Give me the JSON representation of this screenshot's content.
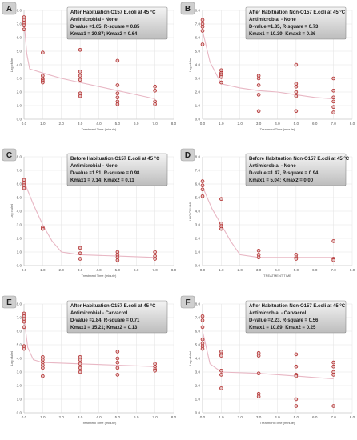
{
  "chart_data": [
    {
      "type": "scatter",
      "panel_label": "A",
      "annotation": [
        "After Habituation O157 E.coli at 45 °C",
        "Antimicrobial - None",
        "D-value =1.65, R-square = 0.85",
        "Kmax1 = 30.87; Kmax2 = 0.64"
      ],
      "ylabel": "Log cfu/ml",
      "xlabel": "Treatment Time (minute)",
      "xlim": [
        0,
        8
      ],
      "ylim": [
        0,
        8
      ],
      "xticks": [
        "0.0",
        "1.0",
        "2.0",
        "3.0",
        "4.0",
        "5.0",
        "6.0",
        "7.0",
        "8.0"
      ],
      "yticks": [
        "0.0",
        "1.0",
        "2.0",
        "3.0",
        "4.0",
        "5.0",
        "6.0",
        "7.0",
        "8.0"
      ],
      "points": [
        [
          0,
          7.5
        ],
        [
          0,
          7.3
        ],
        [
          0,
          7.1
        ],
        [
          0,
          6.9
        ],
        [
          0,
          6.6
        ],
        [
          1,
          4.9
        ],
        [
          1,
          3.2
        ],
        [
          1,
          3.0
        ],
        [
          1,
          2.9
        ],
        [
          1,
          2.8
        ],
        [
          1,
          2.7
        ],
        [
          3,
          5.1
        ],
        [
          3,
          3.5
        ],
        [
          3,
          3.2
        ],
        [
          3,
          2.9
        ],
        [
          3,
          1.9
        ],
        [
          3,
          1.7
        ],
        [
          5,
          4.3
        ],
        [
          5,
          2.5
        ],
        [
          5,
          1.9
        ],
        [
          5,
          1.6
        ],
        [
          5,
          1.3
        ],
        [
          5,
          1.1
        ],
        [
          7,
          2.4
        ],
        [
          7,
          2.1
        ],
        [
          7,
          1.3
        ],
        [
          7,
          1.1
        ]
      ],
      "fit": [
        [
          0,
          7.2
        ],
        [
          0.15,
          4.8
        ],
        [
          0.3,
          3.7
        ],
        [
          1,
          3.4
        ],
        [
          2,
          3.0
        ],
        [
          3,
          2.7
        ],
        [
          4,
          2.4
        ],
        [
          5,
          2.1
        ],
        [
          6,
          1.8
        ],
        [
          7,
          1.5
        ]
      ]
    },
    {
      "type": "scatter",
      "panel_label": "B",
      "annotation": [
        "After Habituation Non-O157 E.coli at 45 °C",
        "Antimicrobial - None",
        "D-value =1.85, R-square = 0.73",
        "Kmax1 = 10.39; Kmax2 = 0.26"
      ],
      "ylabel": "Log cfu/ml",
      "xlabel": "Treatment Time (minute)",
      "xlim": [
        0,
        8
      ],
      "ylim": [
        0,
        8
      ],
      "xticks": [
        "0.0",
        "1.0",
        "2.0",
        "3.0",
        "4.0",
        "5.0",
        "6.0",
        "7.0",
        "8.0"
      ],
      "yticks": [
        "0.0",
        "1.0",
        "2.0",
        "3.0",
        "4.0",
        "5.0",
        "6.0",
        "7.0",
        "8.0"
      ],
      "points": [
        [
          0,
          7.3
        ],
        [
          0,
          7.0
        ],
        [
          0,
          6.8
        ],
        [
          0,
          6.5
        ],
        [
          0,
          5.5
        ],
        [
          1,
          3.6
        ],
        [
          1,
          3.4
        ],
        [
          1,
          3.3
        ],
        [
          1,
          3.2
        ],
        [
          1,
          3.1
        ],
        [
          1,
          2.7
        ],
        [
          3,
          3.2
        ],
        [
          3,
          3.0
        ],
        [
          3,
          2.5
        ],
        [
          3,
          1.8
        ],
        [
          3,
          0.6
        ],
        [
          5,
          4.0
        ],
        [
          5,
          2.6
        ],
        [
          5,
          2.4
        ],
        [
          5,
          2.0
        ],
        [
          5,
          1.7
        ],
        [
          5,
          0.6
        ],
        [
          7,
          3.0
        ],
        [
          7,
          2.1
        ],
        [
          7,
          1.6
        ],
        [
          7,
          1.3
        ],
        [
          7,
          0.9
        ],
        [
          7,
          0.5
        ]
      ],
      "fit": [
        [
          0,
          6.5
        ],
        [
          0.4,
          4.2
        ],
        [
          1,
          2.6
        ],
        [
          2,
          2.3
        ],
        [
          3,
          2.1
        ],
        [
          4,
          2.0
        ],
        [
          5,
          1.8
        ],
        [
          6,
          1.6
        ],
        [
          7,
          1.5
        ]
      ]
    },
    {
      "type": "scatter",
      "panel_label": "C",
      "annotation": [
        "Before Habituation O157 E.coli at 45 °C",
        "Antimicrobial - None",
        "D-value =1.51, R-square = 0.98",
        "Kmax1 = 7.14; Kmax2 = 0.11"
      ],
      "ylabel": "Log cfu/ml",
      "xlabel": "Treatment Time (minute)",
      "xlim": [
        0,
        8
      ],
      "ylim": [
        0,
        8
      ],
      "xticks": [
        "0.0",
        "1.0",
        "2.0",
        "3.0",
        "4.0",
        "5.0",
        "6.0",
        "7.0",
        "8.0"
      ],
      "yticks": [
        "0.0",
        "1.0",
        "2.0",
        "3.0",
        "4.0",
        "5.0",
        "6.0",
        "7.0",
        "8.0"
      ],
      "points": [
        [
          0,
          6.3
        ],
        [
          0,
          6.1
        ],
        [
          0,
          5.9
        ],
        [
          0,
          5.7
        ],
        [
          1,
          2.8
        ],
        [
          1,
          2.7
        ],
        [
          3,
          1.3
        ],
        [
          3,
          0.9
        ],
        [
          3,
          0.5
        ],
        [
          5,
          1.0
        ],
        [
          5,
          0.8
        ],
        [
          5,
          0.6
        ],
        [
          5,
          0.4
        ],
        [
          7,
          1.0
        ],
        [
          7,
          0.7
        ],
        [
          7,
          0.5
        ]
      ],
      "fit": [
        [
          0,
          6.2
        ],
        [
          0.5,
          4.5
        ],
        [
          1,
          3.0
        ],
        [
          1.5,
          1.8
        ],
        [
          2,
          1.0
        ],
        [
          3,
          0.8
        ],
        [
          5,
          0.7
        ],
        [
          7,
          0.6
        ]
      ]
    },
    {
      "type": "scatter",
      "panel_label": "D",
      "annotation": [
        "Before Habituation Non-O157 E.coli at 45 °C",
        "Antimicrobial - None",
        "D-value =1.47, R-square = 0.94",
        "Kmax1 = 5.04; Kmax2 = 0.00"
      ],
      "ylabel": "LOG CFU/ML",
      "xlabel": "TREATMENT TIME",
      "xlim": [
        0,
        8
      ],
      "ylim": [
        0,
        8
      ],
      "xticks": [
        "0.0",
        "1.0",
        "2.0",
        "3.0",
        "4.0",
        "5.0",
        "6.0",
        "7.0",
        "8.0"
      ],
      "yticks": [
        "0.0",
        "1.0",
        "2.0",
        "3.0",
        "4.0",
        "5.0",
        "6.0",
        "7.0",
        "8.0"
      ],
      "points": [
        [
          0,
          6.2
        ],
        [
          0,
          5.9
        ],
        [
          0,
          5.6
        ],
        [
          0,
          5.1
        ],
        [
          1,
          4.9
        ],
        [
          1,
          3.1
        ],
        [
          1,
          2.9
        ],
        [
          1,
          2.7
        ],
        [
          3,
          1.1
        ],
        [
          3,
          0.8
        ],
        [
          3,
          0.6
        ],
        [
          5,
          0.8
        ],
        [
          5,
          0.6
        ],
        [
          5,
          0.5
        ],
        [
          7,
          1.8
        ],
        [
          7,
          0.5
        ],
        [
          7,
          0.4
        ]
      ],
      "fit": [
        [
          0,
          5.8
        ],
        [
          0.5,
          4.2
        ],
        [
          1,
          3.0
        ],
        [
          1.5,
          1.8
        ],
        [
          2,
          0.8
        ],
        [
          3,
          0.6
        ],
        [
          5,
          0.6
        ],
        [
          7,
          0.6
        ]
      ]
    },
    {
      "type": "scatter",
      "panel_label": "E",
      "annotation": [
        "After Habituation O157 E.coli at 45 °C",
        "Antimicrobial - Carvacrol",
        "D-value =2.84, R-square = 0.71",
        "Kmax1 = 15.21; Kmax2 = 0.13"
      ],
      "ylabel": "Log cfu/ml",
      "xlabel": "Treatment Time (minute)",
      "xlim": [
        0,
        8
      ],
      "ylim": [
        0,
        8
      ],
      "xticks": [
        "0.0",
        "1.0",
        "2.0",
        "3.0",
        "4.0",
        "5.0",
        "6.0",
        "7.0",
        "8.0"
      ],
      "yticks": [
        "0.0",
        "1.0",
        "2.0",
        "3.0",
        "4.0",
        "5.0",
        "6.0",
        "7.0",
        "8.0"
      ],
      "points": [
        [
          0,
          7.3
        ],
        [
          0,
          7.1
        ],
        [
          0,
          6.9
        ],
        [
          0,
          6.7
        ],
        [
          0,
          6.3
        ],
        [
          0,
          4.9
        ],
        [
          0,
          4.7
        ],
        [
          1,
          4.1
        ],
        [
          1,
          3.9
        ],
        [
          1,
          3.7
        ],
        [
          1,
          3.5
        ],
        [
          1,
          3.3
        ],
        [
          1,
          2.7
        ],
        [
          3,
          4.1
        ],
        [
          3,
          3.9
        ],
        [
          3,
          3.6
        ],
        [
          3,
          3.3
        ],
        [
          3,
          3.0
        ],
        [
          5,
          4.5
        ],
        [
          5,
          4.0
        ],
        [
          5,
          3.7
        ],
        [
          5,
          3.3
        ],
        [
          5,
          2.8
        ],
        [
          7,
          3.6
        ],
        [
          7,
          3.4
        ],
        [
          7,
          3.2
        ],
        [
          7,
          3.1
        ]
      ],
      "fit": [
        [
          0,
          7.0
        ],
        [
          0.2,
          4.8
        ],
        [
          0.5,
          3.9
        ],
        [
          1,
          3.7
        ],
        [
          3,
          3.6
        ],
        [
          5,
          3.5
        ],
        [
          7,
          3.4
        ]
      ]
    },
    {
      "type": "scatter",
      "panel_label": "F",
      "annotation": [
        "After Habituation Non-O157 E.coli at 45 °C",
        "Antimicrobial - Carvacrol",
        "D-value =2.23, R-square = 0.56",
        "Kmax1 = 10.89; Kmax2 = 0.25"
      ],
      "ylabel": "Log cfu/ml",
      "xlabel": "Treatment Time (minute)",
      "xlim": [
        0,
        8
      ],
      "ylim": [
        0,
        8
      ],
      "xticks": [
        "0.0",
        "1.0",
        "2.0",
        "3.0",
        "4.0",
        "5.0",
        "6.0",
        "7.0",
        "8.0"
      ],
      "yticks": [
        "0.0",
        "1.0",
        "2.0",
        "3.0",
        "4.0",
        "5.0",
        "6.0",
        "7.0",
        "8.0"
      ],
      "points": [
        [
          0,
          7.1
        ],
        [
          0,
          6.8
        ],
        [
          0,
          6.3
        ],
        [
          0,
          5.4
        ],
        [
          0,
          5.1
        ],
        [
          0,
          4.9
        ],
        [
          0,
          4.7
        ],
        [
          1,
          4.5
        ],
        [
          1,
          4.3
        ],
        [
          1,
          4.2
        ],
        [
          1,
          3.1
        ],
        [
          1,
          2.8
        ],
        [
          1,
          1.8
        ],
        [
          3,
          4.4
        ],
        [
          3,
          4.2
        ],
        [
          3,
          2.9
        ],
        [
          3,
          1.4
        ],
        [
          3,
          1.2
        ],
        [
          5,
          4.3
        ],
        [
          5,
          3.4
        ],
        [
          5,
          2.8
        ],
        [
          5,
          2.7
        ],
        [
          5,
          1.0
        ],
        [
          5,
          0.5
        ],
        [
          7,
          3.7
        ],
        [
          7,
          3.4
        ],
        [
          7,
          3.0
        ],
        [
          7,
          2.8
        ],
        [
          7,
          0.5
        ]
      ],
      "fit": [
        [
          0,
          6.0
        ],
        [
          0.4,
          3.6
        ],
        [
          1,
          3.0
        ],
        [
          3,
          2.9
        ],
        [
          5,
          2.7
        ],
        [
          7,
          2.5
        ]
      ]
    }
  ]
}
